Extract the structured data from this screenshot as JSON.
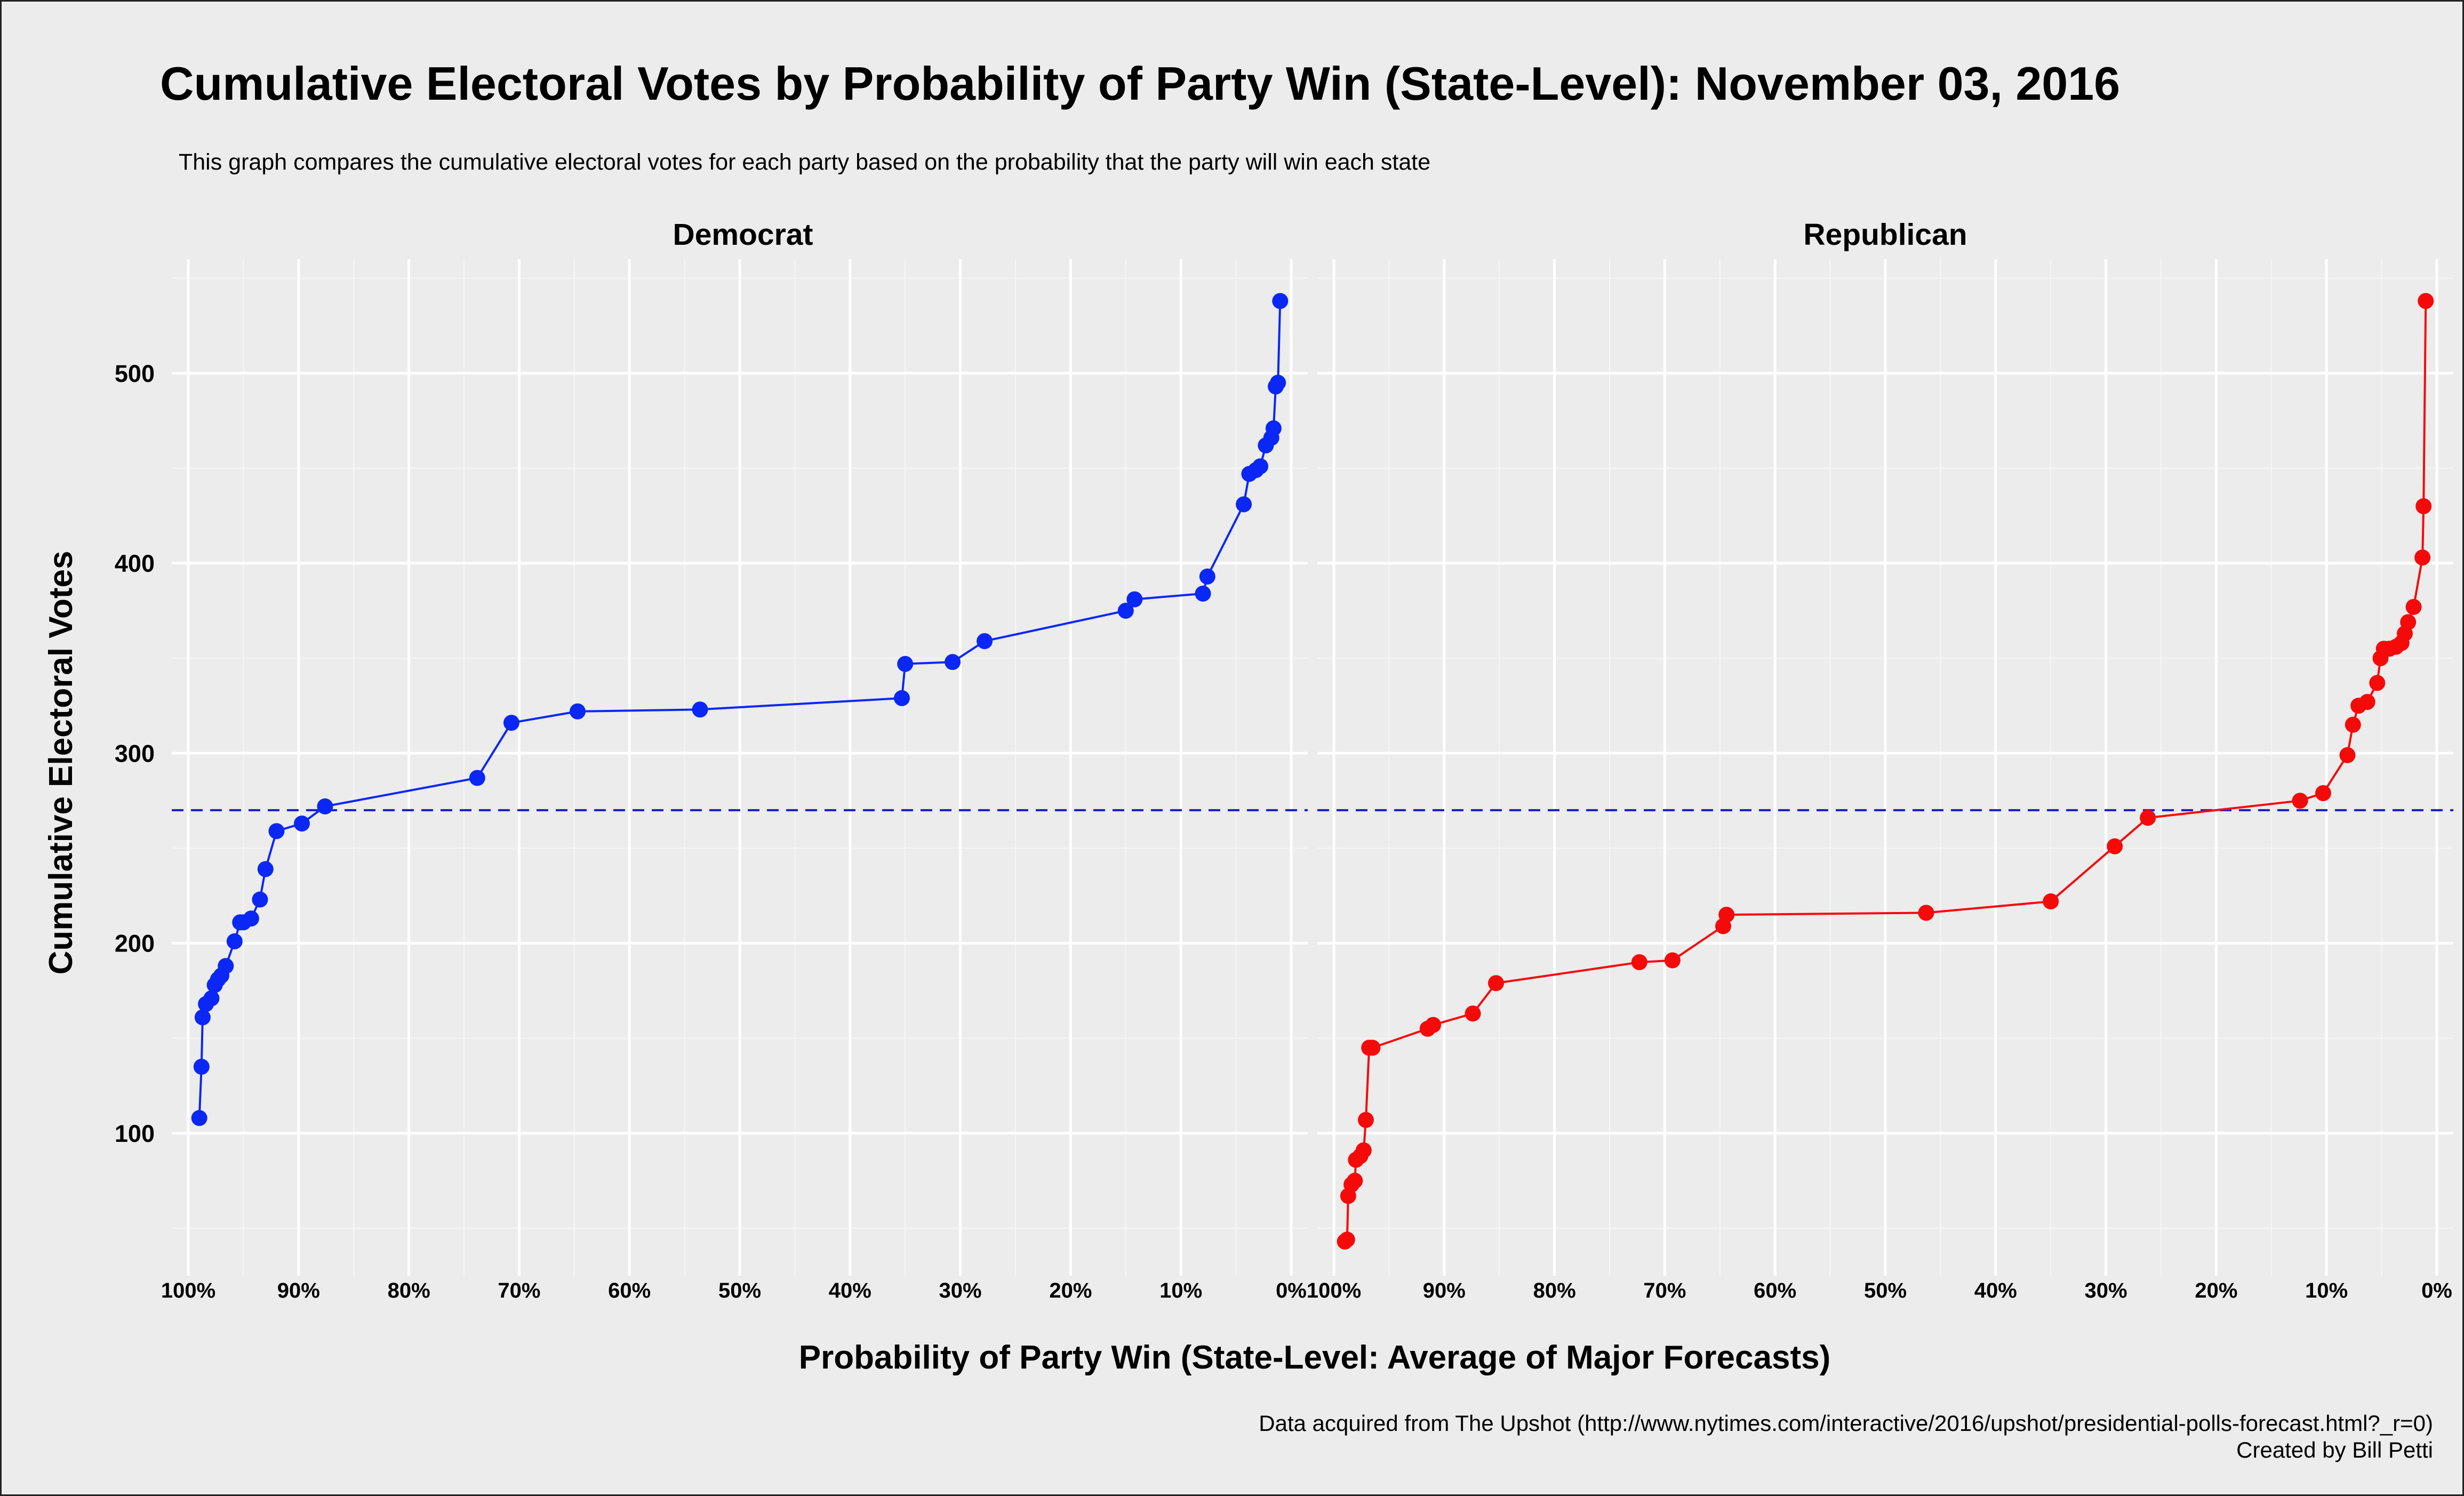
{
  "title": "Cumulative Electoral Votes by Probability of Party Win (State-Level): November 03, 2016",
  "subtitle": "This graph compares the cumulative electoral votes for each party based on the probability that the party will win each state",
  "caption_line1": "Data acquired from The Upshot (http://www.nytimes.com/interactive/2016/upshot/presidential-polls-forecast.html?_r=0)",
  "caption_line2": "Created by Bill Petti",
  "colors": {
    "democrat": "#0a27f5",
    "republican": "#f50a0a",
    "reference_line": "#1a1ad6",
    "panel_background": "#ececec",
    "grid_major": "#ffffff"
  },
  "chart_data": {
    "type": "line",
    "facets": [
      "Democrat",
      "Republican"
    ],
    "xlabel": "Probability of Party Win (State-Level: Average of Major Forecasts)",
    "ylabel": "Cumulative Electoral Votes",
    "x_ticks": [
      "100%",
      "90%",
      "80%",
      "70%",
      "60%",
      "50%",
      "40%",
      "30%",
      "20%",
      "10%",
      "0%"
    ],
    "x_tick_values": [
      100,
      90,
      80,
      70,
      60,
      50,
      40,
      30,
      20,
      10,
      0
    ],
    "xlim": [
      101.5,
      -1.5
    ],
    "x_reversed": true,
    "y_ticks": [
      "100",
      "200",
      "300",
      "400",
      "500"
    ],
    "y_tick_values": [
      100,
      200,
      300,
      400,
      500
    ],
    "ylim": [
      25,
      560
    ],
    "grid": true,
    "reference_line": {
      "y": 270,
      "style": "dashed"
    },
    "series": [
      {
        "name": "Democrat",
        "x": [
          99.0,
          98.8,
          98.7,
          98.4,
          97.9,
          97.6,
          97.3,
          97.0,
          96.6,
          95.8,
          95.3,
          95.0,
          94.3,
          93.5,
          93.0,
          92.0,
          89.7,
          87.6,
          73.8,
          70.7,
          64.7,
          53.6,
          35.3,
          35.0,
          30.7,
          27.8,
          15.0,
          14.2,
          8.0,
          7.6,
          4.3,
          3.8,
          3.2,
          2.8,
          2.3,
          1.8,
          1.6,
          1.4,
          1.2,
          1.0
        ],
        "y": [
          108,
          135,
          161,
          168,
          171,
          178,
          181,
          183,
          188,
          201,
          211,
          211,
          213,
          223,
          239,
          259,
          263,
          272,
          287,
          316,
          322,
          323,
          329,
          347,
          348,
          359,
          375,
          381,
          384,
          393,
          431,
          447,
          449,
          451,
          462,
          466,
          471,
          493,
          495,
          538
        ]
      },
      {
        "name": "Republican",
        "x": [
          99.0,
          98.8,
          98.7,
          98.4,
          98.1,
          98.0,
          97.6,
          97.3,
          97.1,
          96.8,
          96.5,
          91.5,
          91.0,
          87.4,
          85.3,
          72.3,
          69.3,
          64.7,
          64.4,
          46.3,
          35.0,
          29.2,
          26.2,
          12.4,
          10.3,
          8.1,
          7.6,
          7.1,
          6.3,
          5.4,
          5.1,
          4.8,
          4.3,
          3.7,
          3.2,
          2.9,
          2.6,
          2.1,
          1.3,
          1.2,
          1.0
        ],
        "y": [
          43,
          44,
          67,
          73,
          75,
          86,
          88,
          91,
          107,
          145,
          145,
          155,
          157,
          163,
          179,
          190,
          191,
          209,
          215,
          216,
          222,
          251,
          266,
          275,
          279,
          299,
          315,
          325,
          327,
          337,
          350,
          355,
          355,
          356,
          358,
          363,
          369,
          377,
          403,
          430,
          538
        ]
      }
    ]
  }
}
